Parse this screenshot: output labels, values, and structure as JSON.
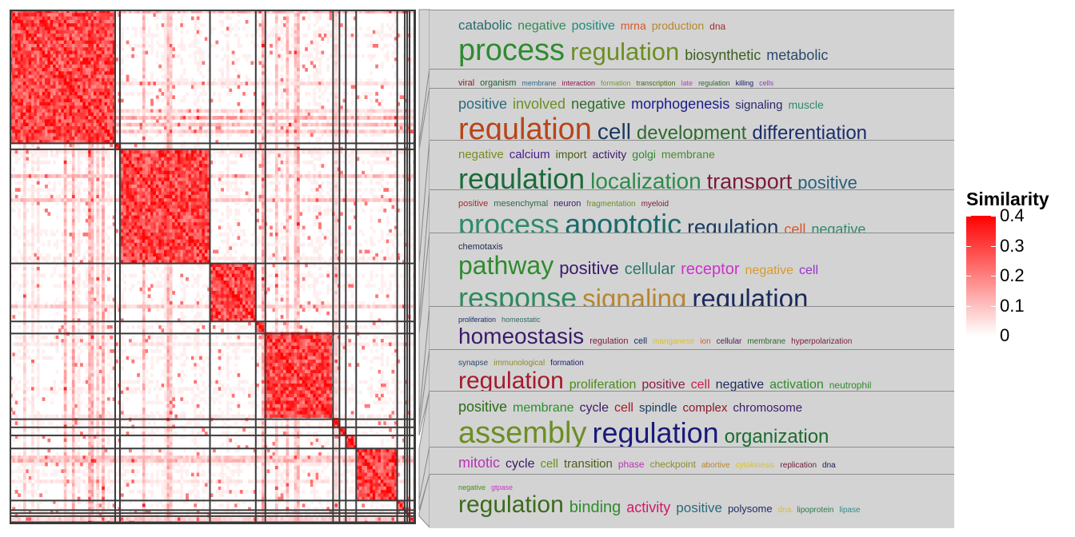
{
  "chart_data": {
    "type": "heatmap",
    "title": "",
    "colorbar": {
      "title": "Similarity",
      "ticks": [
        "0.4",
        "0.3",
        "0.2",
        "0.1",
        "0"
      ],
      "values": [
        0.4,
        0.3,
        0.2,
        0.1,
        0
      ],
      "range": [
        0,
        0.4
      ],
      "colors": {
        "low": "#ffffff",
        "high": "#ff0000"
      }
    },
    "cluster_fractions": [
      0.265,
      0.012,
      0.226,
      0.115,
      0.024,
      0.17,
      0.016,
      0.016,
      0.026,
      0.103,
      0.019,
      0.006,
      0.006,
      0.012,
      0.004
    ],
    "clusters": [
      {
        "rows": [
          [
            [
              "catabolic",
              17,
              "#2a6b6b"
            ],
            [
              "negative",
              16,
              "#2e8b57"
            ],
            [
              "positive",
              16,
              "#1f8b7a"
            ],
            [
              "mrna",
              14,
              "#d8582a"
            ],
            [
              "production",
              14,
              "#b8862d"
            ],
            [
              "dna",
              12,
              "#a52a2a"
            ]
          ],
          [
            [
              "process",
              38,
              "#2e8b2e"
            ],
            [
              "regulation",
              31,
              "#6b8e23"
            ],
            [
              "biosynthetic",
              18,
              "#3b5e23"
            ],
            [
              "metabolic",
              18,
              "#2a4a6b"
            ]
          ]
        ]
      },
      {
        "rows": [
          [
            [
              "viral",
              11,
              "#8b1a1a"
            ],
            [
              "organism",
              11,
              "#1f5e2e"
            ],
            [
              "membrane",
              9,
              "#2e6b8b"
            ],
            [
              "interaction",
              9,
              "#8b1a4a"
            ],
            [
              "formation",
              9,
              "#7a9a2e"
            ],
            [
              "transcription",
              9,
              "#4a6b1a"
            ],
            [
              "late",
              9,
              "#cc33cc"
            ],
            [
              "regulation",
              9,
              "#2e6b2e"
            ],
            [
              "killing",
              9,
              "#1a1a6b"
            ],
            [
              "cells",
              9,
              "#9933cc"
            ]
          ]
        ]
      },
      {
        "rows": [
          [
            [
              "positive",
              18,
              "#2a6b7a"
            ],
            [
              "involved",
              18,
              "#6b8e23"
            ],
            [
              "negative",
              18,
              "#2e6b2e"
            ],
            [
              "morphogenesis",
              18,
              "#1a1a8b"
            ],
            [
              "signaling",
              15,
              "#2a2a6b"
            ],
            [
              "muscle",
              14,
              "#2e8b6b"
            ]
          ],
          [
            [
              "regulation",
              38,
              "#b8441a"
            ],
            [
              "cell",
              28,
              "#1a3a5e"
            ],
            [
              "development",
              24,
              "#2e6b2e"
            ],
            [
              "differentiation",
              24,
              "#1a2e6b"
            ]
          ]
        ]
      },
      {
        "rows": [
          [
            [
              "negative",
              15,
              "#7a8b1a"
            ],
            [
              "calcium",
              15,
              "#4a1a8b"
            ],
            [
              "import",
              14,
              "#4a5e1a"
            ],
            [
              "activity",
              14,
              "#3a1a6b"
            ],
            [
              "golgi",
              14,
              "#2e8b2e"
            ],
            [
              "membrane",
              14,
              "#4a8b2e"
            ]
          ],
          [
            [
              "regulation",
              36,
              "#1a6b3a"
            ],
            [
              "localization",
              28,
              "#2e8b4a"
            ],
            [
              "transport",
              27,
              "#7a1a3a"
            ],
            [
              "positive",
              22,
              "#2a5e7a"
            ]
          ]
        ]
      },
      {
        "rows": [
          [
            [
              "positive",
              11,
              "#a52a2a"
            ],
            [
              "mesenchymal",
              11,
              "#2e6b4a"
            ],
            [
              "neuron",
              11,
              "#3a1a6b"
            ],
            [
              "fragmentation",
              10,
              "#6b8e23"
            ],
            [
              "myeloid",
              10,
              "#7a1a3a"
            ]
          ],
          [
            [
              "process",
              36,
              "#2e8b6b"
            ],
            [
              "apoptotic",
              36,
              "#1a6b6b"
            ],
            [
              "regulation",
              26,
              "#1a3a5e"
            ],
            [
              "cell",
              18,
              "#d8582a"
            ],
            [
              "negative",
              18,
              "#2e8b6b"
            ]
          ]
        ]
      },
      {
        "rows": [
          [
            [
              "chemotaxis",
              11,
              "#1a2a4a"
            ]
          ],
          [
            [
              "pathway",
              32,
              "#2e8b2e"
            ],
            [
              "positive",
              22,
              "#3a1a6b"
            ],
            [
              "cellular",
              20,
              "#2e7a6b"
            ],
            [
              "receptor",
              20,
              "#cc33cc"
            ],
            [
              "negative",
              16,
              "#d89a2a"
            ],
            [
              "cell",
              16,
              "#9933cc"
            ]
          ],
          [
            [
              "response",
              36,
              "#2e8b5e"
            ],
            [
              "signaling",
              33,
              "#b8862d"
            ],
            [
              "regulation",
              33,
              "#1a2a5e"
            ]
          ]
        ]
      },
      {
        "rows": [
          [
            [
              "proliferation",
              9,
              "#1a2a6b"
            ],
            [
              "homeostatic",
              9,
              "#2e6b6b"
            ]
          ],
          [
            [
              "homeostasis",
              28,
              "#3a1a6b"
            ],
            [
              "regulation",
              11,
              "#7a1a3a"
            ],
            [
              "cell",
              11,
              "#1a2a6b"
            ],
            [
              "manganese",
              10,
              "#d8c02a"
            ],
            [
              "ion",
              10,
              "#d8582a"
            ],
            [
              "cellular",
              10,
              "#4a1a4a"
            ],
            [
              "membrane",
              10,
              "#2e6b2e"
            ],
            [
              "hyperpolarization",
              10,
              "#7a1a3a"
            ]
          ]
        ]
      },
      {
        "rows": [
          [
            [
              "synapse",
              10,
              "#2a4a6b"
            ],
            [
              "immunological",
              10,
              "#8b8b2e"
            ],
            [
              "formation",
              10,
              "#1a1a6b"
            ]
          ],
          [
            [
              "regulation",
              30,
              "#a51a2a"
            ],
            [
              "proliferation",
              16,
              "#4a8b1a"
            ],
            [
              "positive",
              16,
              "#8b1a4a"
            ],
            [
              "cell",
              16,
              "#cc1a4a"
            ],
            [
              "negative",
              16,
              "#1a2a5e"
            ],
            [
              "activation",
              16,
              "#2e8b2e"
            ],
            [
              "neutrophil",
              12,
              "#2e8b2e"
            ]
          ]
        ]
      },
      {
        "rows": [
          [
            [
              "positive",
              18,
              "#2e6b1a"
            ],
            [
              "membrane",
              16,
              "#2e8b2e"
            ],
            [
              "cycle",
              16,
              "#3a1a6b"
            ],
            [
              "cell",
              16,
              "#a51a2a"
            ],
            [
              "spindle",
              15,
              "#1a3a5e"
            ],
            [
              "complex",
              15,
              "#8b1a2a"
            ],
            [
              "chromosome",
              15,
              "#3a1a6b"
            ]
          ],
          [
            [
              "assembly",
              38,
              "#6b8e23"
            ],
            [
              "regulation",
              36,
              "#1a1a7a"
            ],
            [
              "organization",
              24,
              "#1a6b2e"
            ]
          ]
        ]
      },
      {
        "rows": [
          [
            [
              "mitotic",
              18,
              "#b833b8"
            ],
            [
              "cycle",
              16,
              "#3a1a6b"
            ],
            [
              "cell",
              15,
              "#6b8e1a"
            ],
            [
              "transition",
              15,
              "#4a5e1a"
            ],
            [
              "phase",
              12,
              "#b833b8"
            ],
            [
              "checkpoint",
              12,
              "#8b8b2e"
            ],
            [
              "abortive",
              10,
              "#b8862d"
            ],
            [
              "cytokinesis",
              10,
              "#d8c02a"
            ],
            [
              "replication",
              10,
              "#6b1a3a"
            ],
            [
              "dna",
              10,
              "#1a1a4a"
            ]
          ]
        ]
      },
      {
        "rows": [
          [
            [
              "negative",
              9,
              "#4a8b1a"
            ],
            [
              "gtpase",
              9,
              "#cc33cc"
            ]
          ],
          [
            [
              "regulation",
              30,
              "#3a6b1a"
            ],
            [
              "binding",
              20,
              "#2e8b2e"
            ],
            [
              "activity",
              18,
              "#cc1a6b"
            ],
            [
              "positive",
              17,
              "#2a6b7a"
            ],
            [
              "polysome",
              13,
              "#1a2a5e"
            ],
            [
              "dna",
              10,
              "#d8c02a"
            ],
            [
              "lipoprotein",
              10,
              "#2e7a4a"
            ],
            [
              "lipase",
              10,
              "#2e8b8b"
            ]
          ]
        ]
      }
    ]
  }
}
